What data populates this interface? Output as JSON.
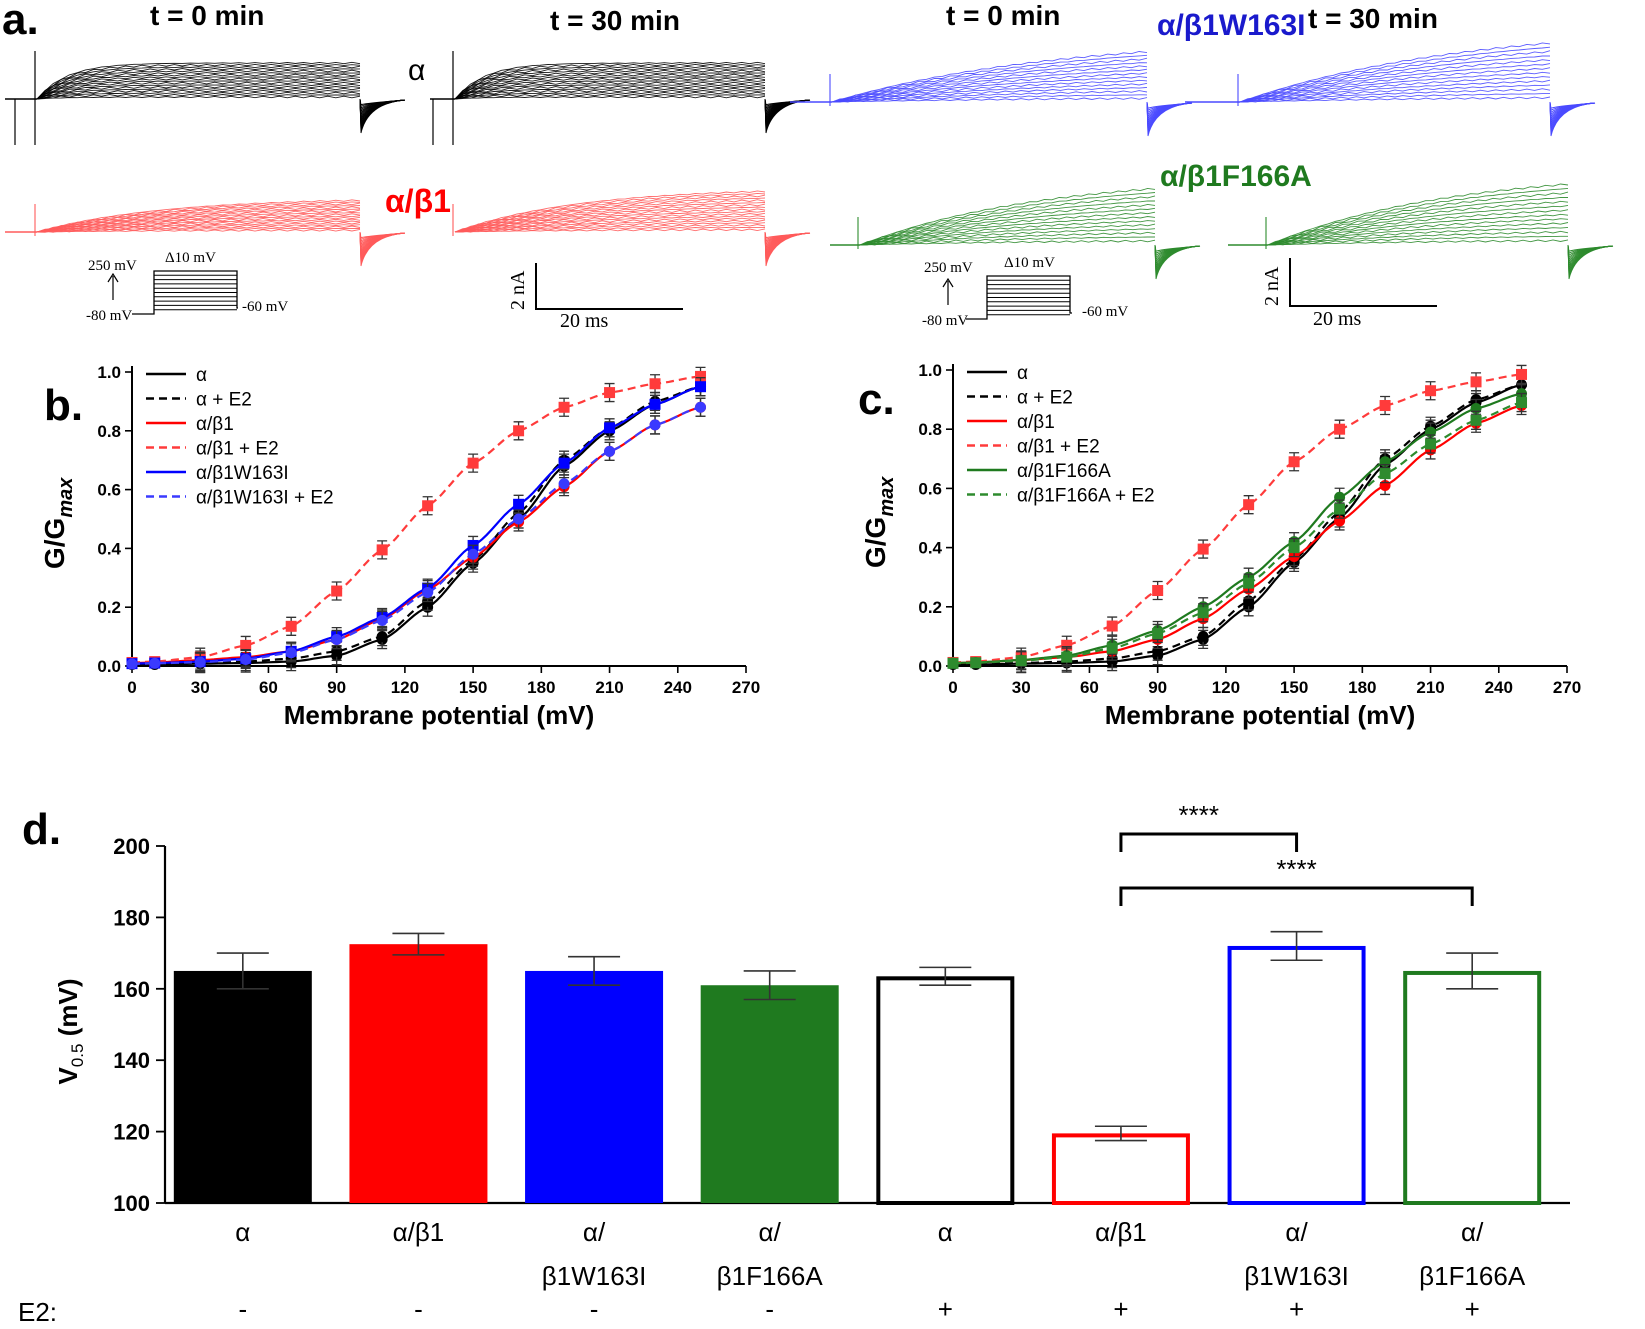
{
  "panel_a": {
    "letter": "a.",
    "t0": "t = 0 min",
    "t30": "t = 30 min",
    "row_alpha_label": "α",
    "row_b1_label": "α/β1",
    "row_w163_label": "α/β1W163I",
    "row_f166_label": "α/β1F166A",
    "protocol": {
      "top": "250 mV",
      "step": "Δ10 mV",
      "hold": "-80 mV",
      "tail": "-60 mV"
    },
    "scale": {
      "current": "2 nA",
      "time": "20 ms"
    }
  },
  "colors": {
    "alpha": "#000000",
    "b1": "#ff0000",
    "w163": "#0000ff",
    "f166": "#1f7a1f",
    "b1_light": "#ff5b5b",
    "w163_light": "#4a4aff",
    "f166_light": "#2e8b2e"
  },
  "panel_b": {
    "letter": "b."
  },
  "panel_c": {
    "letter": "c."
  },
  "panel_d": {
    "letter": "d."
  },
  "chart_data": [
    {
      "type": "line",
      "panel": "b",
      "xlabel": "Membrane potential (mV)",
      "ylabel": "G/Gmax",
      "xlim": [
        0,
        270
      ],
      "ylim": [
        0,
        1.0
      ],
      "xticks": [
        "0",
        "30",
        "60",
        "90",
        "120",
        "150",
        "180",
        "210",
        "240",
        "270"
      ],
      "yticks": [
        "0.0",
        "0.2",
        "0.4",
        "0.6",
        "0.8",
        "1.0"
      ],
      "legend_position": "top-left",
      "x": [
        0,
        10,
        30,
        50,
        70,
        90,
        110,
        130,
        150,
        170,
        190,
        210,
        230,
        250
      ],
      "series": [
        {
          "name": "α",
          "style": "solid",
          "color": "#000000",
          "marker": "circle",
          "values": [
            0.005,
            0.005,
            0.008,
            0.01,
            0.015,
            0.035,
            0.09,
            0.2,
            0.35,
            0.5,
            0.68,
            0.8,
            0.89,
            0.95
          ]
        },
        {
          "name": "α + E2",
          "style": "dashed",
          "color": "#000000",
          "marker": "circle",
          "values": [
            0.006,
            0.007,
            0.01,
            0.015,
            0.025,
            0.05,
            0.1,
            0.22,
            0.36,
            0.52,
            0.7,
            0.81,
            0.9,
            0.95
          ]
        },
        {
          "name": "α/β1",
          "style": "solid",
          "color": "#ff0000",
          "marker": "circle",
          "values": [
            0.01,
            0.012,
            0.02,
            0.03,
            0.05,
            0.09,
            0.16,
            0.26,
            0.37,
            0.49,
            0.61,
            0.73,
            0.82,
            0.88
          ]
        },
        {
          "name": "α/β1 + E2",
          "style": "dashed",
          "color": "#ff3b3b",
          "marker": "square",
          "values": [
            0.012,
            0.015,
            0.03,
            0.07,
            0.135,
            0.255,
            0.395,
            0.545,
            0.69,
            0.8,
            0.88,
            0.93,
            0.96,
            0.985
          ]
        },
        {
          "name": "α/β1W163I",
          "style": "solid",
          "color": "#0000ff",
          "marker": "square",
          "values": [
            0.008,
            0.01,
            0.015,
            0.025,
            0.05,
            0.1,
            0.165,
            0.265,
            0.41,
            0.55,
            0.69,
            0.81,
            0.89,
            0.95
          ]
        },
        {
          "name": "α/β1W163I + E2",
          "style": "dashed",
          "color": "#3a3aff",
          "marker": "circle",
          "values": [
            0.007,
            0.009,
            0.013,
            0.022,
            0.045,
            0.09,
            0.155,
            0.25,
            0.38,
            0.5,
            0.62,
            0.73,
            0.82,
            0.88
          ]
        }
      ]
    },
    {
      "type": "line",
      "panel": "c",
      "xlabel": "Membrane potential (mV)",
      "ylabel": "G/Gmax",
      "xlim": [
        0,
        270
      ],
      "ylim": [
        0,
        1.0
      ],
      "xticks": [
        "0",
        "30",
        "60",
        "90",
        "120",
        "150",
        "180",
        "210",
        "240",
        "270"
      ],
      "yticks": [
        "0.0",
        "0.2",
        "0.4",
        "0.6",
        "0.8",
        "1.0"
      ],
      "legend_position": "top-left",
      "x": [
        0,
        10,
        30,
        50,
        70,
        90,
        110,
        130,
        150,
        170,
        190,
        210,
        230,
        250
      ],
      "series": [
        {
          "name": "α",
          "style": "solid",
          "color": "#000000",
          "marker": "circle",
          "values": [
            0.005,
            0.005,
            0.008,
            0.01,
            0.015,
            0.035,
            0.09,
            0.2,
            0.35,
            0.5,
            0.68,
            0.8,
            0.89,
            0.95
          ]
        },
        {
          "name": "α + E2",
          "style": "dashed",
          "color": "#000000",
          "marker": "circle",
          "values": [
            0.006,
            0.007,
            0.01,
            0.015,
            0.025,
            0.05,
            0.1,
            0.22,
            0.36,
            0.52,
            0.7,
            0.81,
            0.9,
            0.95
          ]
        },
        {
          "name": "α/β1",
          "style": "solid",
          "color": "#ff0000",
          "marker": "circle",
          "values": [
            0.01,
            0.012,
            0.02,
            0.03,
            0.05,
            0.09,
            0.16,
            0.26,
            0.37,
            0.49,
            0.61,
            0.73,
            0.82,
            0.88
          ]
        },
        {
          "name": "α/β1 + E2",
          "style": "dashed",
          "color": "#ff3b3b",
          "marker": "square",
          "values": [
            0.012,
            0.015,
            0.03,
            0.07,
            0.135,
            0.255,
            0.395,
            0.545,
            0.69,
            0.8,
            0.88,
            0.93,
            0.96,
            0.985
          ]
        },
        {
          "name": "α/β1F166A",
          "style": "solid",
          "color": "#1f7a1f",
          "marker": "circle",
          "values": [
            0.01,
            0.012,
            0.02,
            0.035,
            0.07,
            0.12,
            0.2,
            0.3,
            0.42,
            0.57,
            0.69,
            0.79,
            0.87,
            0.92
          ]
        },
        {
          "name": "α/β1F166A + E2",
          "style": "dashed",
          "color": "#2e8b2e",
          "marker": "square",
          "values": [
            0.009,
            0.011,
            0.018,
            0.03,
            0.06,
            0.11,
            0.18,
            0.28,
            0.4,
            0.53,
            0.65,
            0.75,
            0.83,
            0.89
          ]
        }
      ]
    },
    {
      "type": "bar",
      "panel": "d",
      "ylabel": "V0.5 (mV)",
      "ylim": [
        100,
        200
      ],
      "yticks": [
        "100",
        "120",
        "140",
        "160",
        "180",
        "200"
      ],
      "row_label": "E2:",
      "categories": [
        {
          "line1": "α",
          "line2": "",
          "e2": "-"
        },
        {
          "line1": "α/β1",
          "line2": "",
          "e2": "-"
        },
        {
          "line1": "α/",
          "line2": "β1W163I",
          "e2": "-"
        },
        {
          "line1": "α/",
          "line2": "β1F166A",
          "e2": "-"
        },
        {
          "line1": "α",
          "line2": "",
          "e2": "+"
        },
        {
          "line1": "α/β1",
          "line2": "",
          "e2": "+"
        },
        {
          "line1": "α/",
          "line2": "β1W163I",
          "e2": "+"
        },
        {
          "line1": "α/",
          "line2": "β1F166A",
          "e2": "+"
        }
      ],
      "values": [
        165,
        172.5,
        165,
        161,
        163.5,
        119.5,
        172,
        165
      ],
      "errors": [
        5,
        3,
        4,
        4,
        2.5,
        2,
        4,
        5
      ],
      "colors": [
        "#000000",
        "#ff0000",
        "#0000ff",
        "#1f7a1f",
        "#000000",
        "#ff0000",
        "#0000ff",
        "#1f7a1f"
      ],
      "filled": [
        true,
        true,
        true,
        true,
        false,
        false,
        false,
        false
      ],
      "significance": [
        {
          "from": 5,
          "to": 6,
          "label": "****"
        },
        {
          "from": 5,
          "to": 7,
          "label": "****"
        }
      ]
    }
  ]
}
